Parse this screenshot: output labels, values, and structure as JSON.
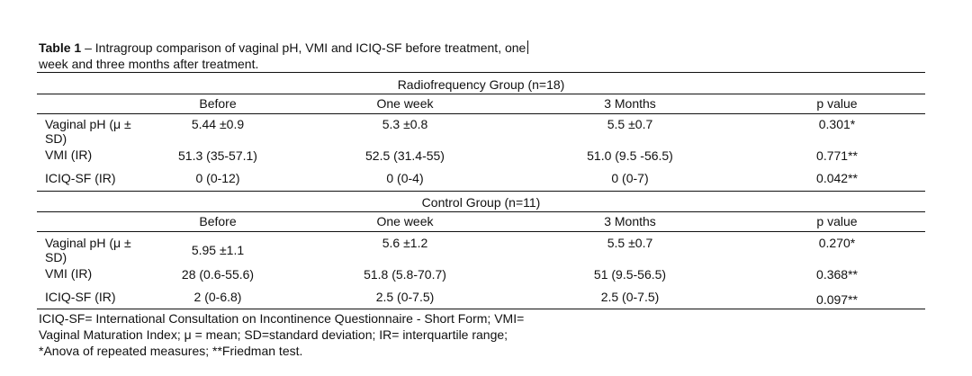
{
  "caption": {
    "label": "Table 1",
    "text_line1": " – Intragroup comparison of vaginal pH, VMI and ICIQ-SF before treatment, one",
    "text_line2": "week and three months after treatment."
  },
  "groups": [
    {
      "title": "Radiofrequency Group (n=18)",
      "headers": [
        "Before",
        "One week",
        "3 Months",
        "p value"
      ],
      "rows": [
        {
          "label_line1": "Vaginal pH (μ ±",
          "label_line2": "SD)",
          "before": "5.44 ±0.9",
          "one_week": "5.3 ±0.8",
          "three_months": "5.5 ±0.7",
          "p_value": "0.301*"
        },
        {
          "label_line1": "VMI (IR)",
          "label_line2": "",
          "before": "51.3 (35-57.1)",
          "one_week": "52.5 (31.4-55)",
          "three_months": "51.0 (9.5 -56.5)",
          "p_value": "0.771**"
        },
        {
          "label_line1": "ICIQ-SF (IR)",
          "label_line2": "",
          "before": "0 (0-12)",
          "one_week": "0 (0-4)",
          "three_months": "0 (0-7)",
          "p_value": "0.042**"
        }
      ]
    },
    {
      "title": "Control Group (n=11)",
      "headers": [
        "Before",
        "One week",
        "3 Months",
        "p value"
      ],
      "rows": [
        {
          "label_line1": "Vaginal pH (μ ±",
          "label_line2": "SD)",
          "before": "5.95 ±1.1",
          "one_week": "5.6 ±1.2",
          "three_months": "5.5 ±0.7",
          "p_value": "0.270*"
        },
        {
          "label_line1": "VMI (IR)",
          "label_line2": "",
          "before": "28 (0.6-55.6)",
          "one_week": "51.8 (5.8-70.7)",
          "three_months": "51 (9.5-56.5)",
          "p_value": "0.368**"
        },
        {
          "label_line1": "ICIQ-SF (IR)",
          "label_line2": "",
          "before": "2 (0-6.8)",
          "one_week": "2.5 (0-7.5)",
          "three_months": "2.5 (0-7.5)",
          "p_value": "0.097**"
        }
      ]
    }
  ],
  "footnotes": [
    "ICIQ-SF= International Consultation on Incontinence Questionnaire - Short Form; VMI=",
    "Vaginal Maturation Index; μ = mean; SD=standard deviation; IR= interquartile range;",
    "*Anova of repeated measures; **Friedman test."
  ]
}
